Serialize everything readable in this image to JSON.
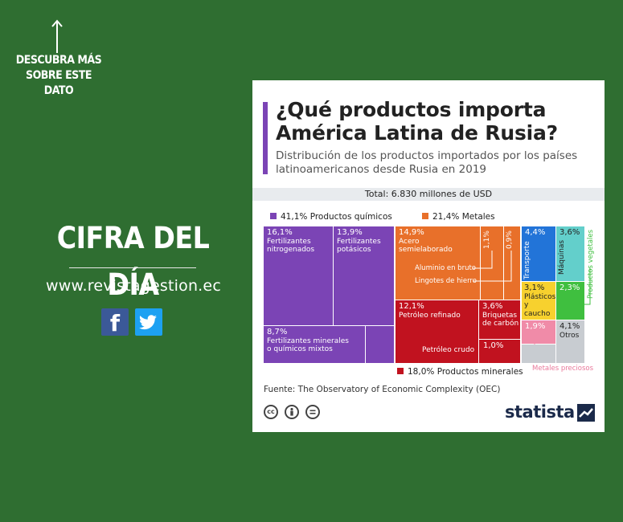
{
  "promo": {
    "cta": "DESCUBRA MÁS SOBRE ESTE DATO",
    "headline": "CIFRA DEL DÍA",
    "website": "www.revistagestion.ec",
    "social": [
      {
        "name": "facebook",
        "glyph": "f",
        "color": "#3b5998"
      },
      {
        "name": "twitter",
        "icon": "twitter-bird-icon",
        "color": "#1da1f2"
      }
    ]
  },
  "card": {
    "brand": "statista",
    "source": "Fuente: The Observatory of Economic Complexity (OEC)",
    "license_icons": [
      "cc-icon",
      "by-icon",
      "nd-icon"
    ]
  },
  "chart_data": {
    "type": "treemap",
    "title": "¿Qué productos importa América Latina de Rusia?",
    "subtitle": "Distribución de los productos importados por los países latinoamericanos desde Rusia en 2019",
    "total_label": "Total: 6.830 millones de USD",
    "groups": [
      {
        "name": "41,1% Productos químicos",
        "color": "#7b44b5",
        "items": [
          {
            "value": "16,1%",
            "label": "Fertilizantes nitrogenados"
          },
          {
            "value": "13,9%",
            "label": "Fertilizantes potásicos"
          },
          {
            "value": "8,7%",
            "label": "Fertilizantes minerales o químicos mixtos"
          }
        ]
      },
      {
        "name": "21,4% Metales",
        "color": "#e8702a",
        "items": [
          {
            "value": "14,9%",
            "label": "Acero semielaborado"
          },
          {
            "value": "1,1%",
            "label": "Aluminio en bruto"
          },
          {
            "value": "0,9%",
            "label": "Lingotes de hierro"
          }
        ]
      },
      {
        "name": "18,0% Productos minerales",
        "color": "#c1121f",
        "items": [
          {
            "value": "12,1%",
            "label": "Petróleo refinado"
          },
          {
            "value": "3,6%",
            "label": "Briquetas de carbón"
          },
          {
            "value": "1,0%",
            "label": "Petróleo crudo"
          }
        ]
      },
      {
        "name": "Transporte",
        "color": "#2274d8",
        "items": [
          {
            "value": "4,4%",
            "label": "Transporte"
          }
        ]
      },
      {
        "name": "Máquinas",
        "color": "#63cfcb",
        "items": [
          {
            "value": "3,6%",
            "label": "Máquinas"
          }
        ]
      },
      {
        "name": "Plásticos y caucho",
        "color": "#f7d12e",
        "items": [
          {
            "value": "3,1%",
            "label": "Plásticos y caucho"
          }
        ]
      },
      {
        "name": "Productos vegetales",
        "color": "#3fbf3f",
        "items": [
          {
            "value": "2,3%",
            "label": "Productos vegetales"
          }
        ]
      },
      {
        "name": "Metales preciosos",
        "color": "#f08ba8",
        "items": [
          {
            "value": "1,9%",
            "label": "Metales preciosos"
          }
        ]
      },
      {
        "name": "Otros",
        "color": "#c8ccd1",
        "items": [
          {
            "value": "4,1%",
            "label": "Otros"
          }
        ]
      }
    ]
  }
}
